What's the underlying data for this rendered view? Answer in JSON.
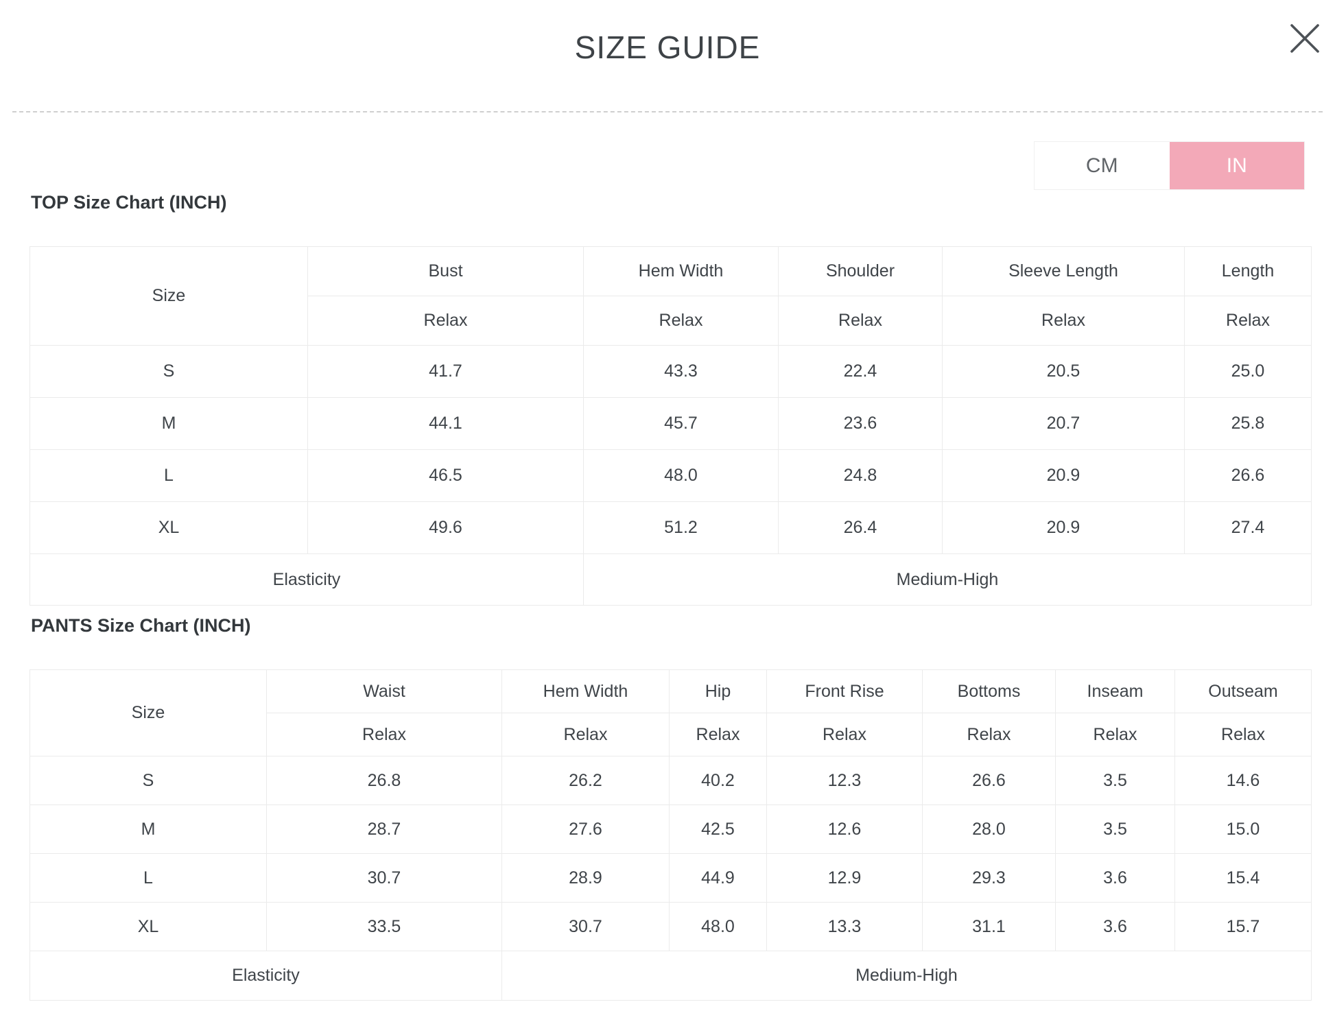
{
  "modal": {
    "title": "SIZE GUIDE"
  },
  "unit_toggle": {
    "options": [
      {
        "label": "CM",
        "selected": false
      },
      {
        "label": "IN",
        "selected": true
      }
    ],
    "selected_color": "#f3a9b8"
  },
  "top_chart": {
    "heading": "TOP Size Chart (INCH)",
    "corner_label": "Size",
    "columns": [
      {
        "label": "Bust",
        "sub": "Relax"
      },
      {
        "label": "Hem Width",
        "sub": "Relax"
      },
      {
        "label": "Shoulder",
        "sub": "Relax"
      },
      {
        "label": "Sleeve Length",
        "sub": "Relax"
      },
      {
        "label": "Length",
        "sub": "Relax"
      }
    ],
    "rows": [
      {
        "size": "S",
        "values": [
          "41.7",
          "43.3",
          "22.4",
          "20.5",
          "25.0"
        ]
      },
      {
        "size": "M",
        "values": [
          "44.1",
          "45.7",
          "23.6",
          "20.7",
          "25.8"
        ]
      },
      {
        "size": "L",
        "values": [
          "46.5",
          "48.0",
          "24.8",
          "20.9",
          "26.6"
        ]
      },
      {
        "size": "XL",
        "values": [
          "49.6",
          "51.2",
          "26.4",
          "20.9",
          "27.4"
        ]
      }
    ],
    "footer": {
      "label": "Elasticity",
      "value": "Medium-High"
    }
  },
  "pants_chart": {
    "heading": "PANTS Size Chart (INCH)",
    "corner_label": "Size",
    "columns": [
      {
        "label": "Waist",
        "sub": "Relax"
      },
      {
        "label": "Hem Width",
        "sub": "Relax"
      },
      {
        "label": "Hip",
        "sub": "Relax"
      },
      {
        "label": "Front Rise",
        "sub": "Relax"
      },
      {
        "label": "Bottoms",
        "sub": "Relax"
      },
      {
        "label": "Inseam",
        "sub": "Relax"
      },
      {
        "label": "Outseam",
        "sub": "Relax"
      }
    ],
    "rows": [
      {
        "size": "S",
        "values": [
          "26.8",
          "26.2",
          "40.2",
          "12.3",
          "26.6",
          "3.5",
          "14.6"
        ]
      },
      {
        "size": "M",
        "values": [
          "28.7",
          "27.6",
          "42.5",
          "12.6",
          "28.0",
          "3.5",
          "15.0"
        ]
      },
      {
        "size": "L",
        "values": [
          "30.7",
          "28.9",
          "44.9",
          "12.9",
          "29.3",
          "3.6",
          "15.4"
        ]
      },
      {
        "size": "XL",
        "values": [
          "33.5",
          "30.7",
          "48.0",
          "13.3",
          "31.1",
          "3.6",
          "15.7"
        ]
      }
    ],
    "footer": {
      "label": "Elasticity",
      "value": "Medium-High"
    }
  }
}
